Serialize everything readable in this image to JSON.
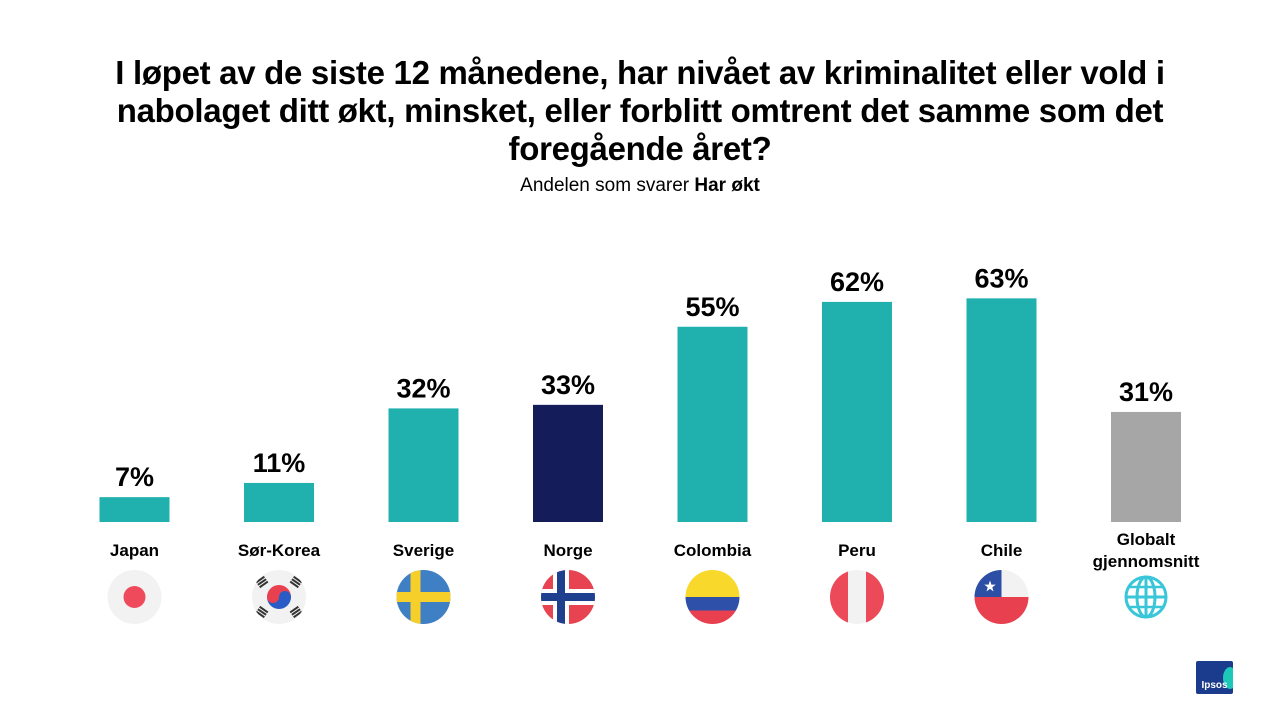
{
  "title": "I løpet av de siste 12 månedene, har nivået av kriminalitet eller vold i nabolaget ditt økt, minsket, eller forblitt omtrent det samme som det foregående året?",
  "subtitle_prefix": "Andelen som svarer ",
  "subtitle_highlight": "Har økt",
  "logo_text": "Ipsos",
  "colors": {
    "default": "#20b0ae",
    "highlight": "#151c5a",
    "average": "#a6a6a6"
  },
  "chart_data": {
    "type": "bar",
    "title": "I løpet av de siste 12 månedene, har nivået av kriminalitet eller vold i nabolaget ditt økt, minsket, eller forblitt omtrent det samme som det foregående året?",
    "subtitle": "Andelen som svarer Har økt",
    "categories": [
      "Japan",
      "Sør-Korea",
      "Sverige",
      "Norge",
      "Colombia",
      "Peru",
      "Chile",
      "Globalt gjennomsnitt"
    ],
    "values": [
      7,
      11,
      32,
      33,
      55,
      62,
      63,
      31
    ],
    "value_labels": [
      "7%",
      "11%",
      "32%",
      "33%",
      "55%",
      "62%",
      "63%",
      "31%"
    ],
    "bar_styles": [
      "default",
      "default",
      "default",
      "highlight",
      "default",
      "default",
      "default",
      "average"
    ],
    "flag_icons": [
      "japan-flag-icon",
      "south-korea-flag-icon",
      "sweden-flag-icon",
      "norway-flag-icon",
      "colombia-flag-icon",
      "peru-flag-icon",
      "chile-flag-icon",
      "globe-icon"
    ],
    "xlabel": "",
    "ylabel": "",
    "ylim": [
      0,
      70
    ],
    "grid": false,
    "legend": "none"
  }
}
